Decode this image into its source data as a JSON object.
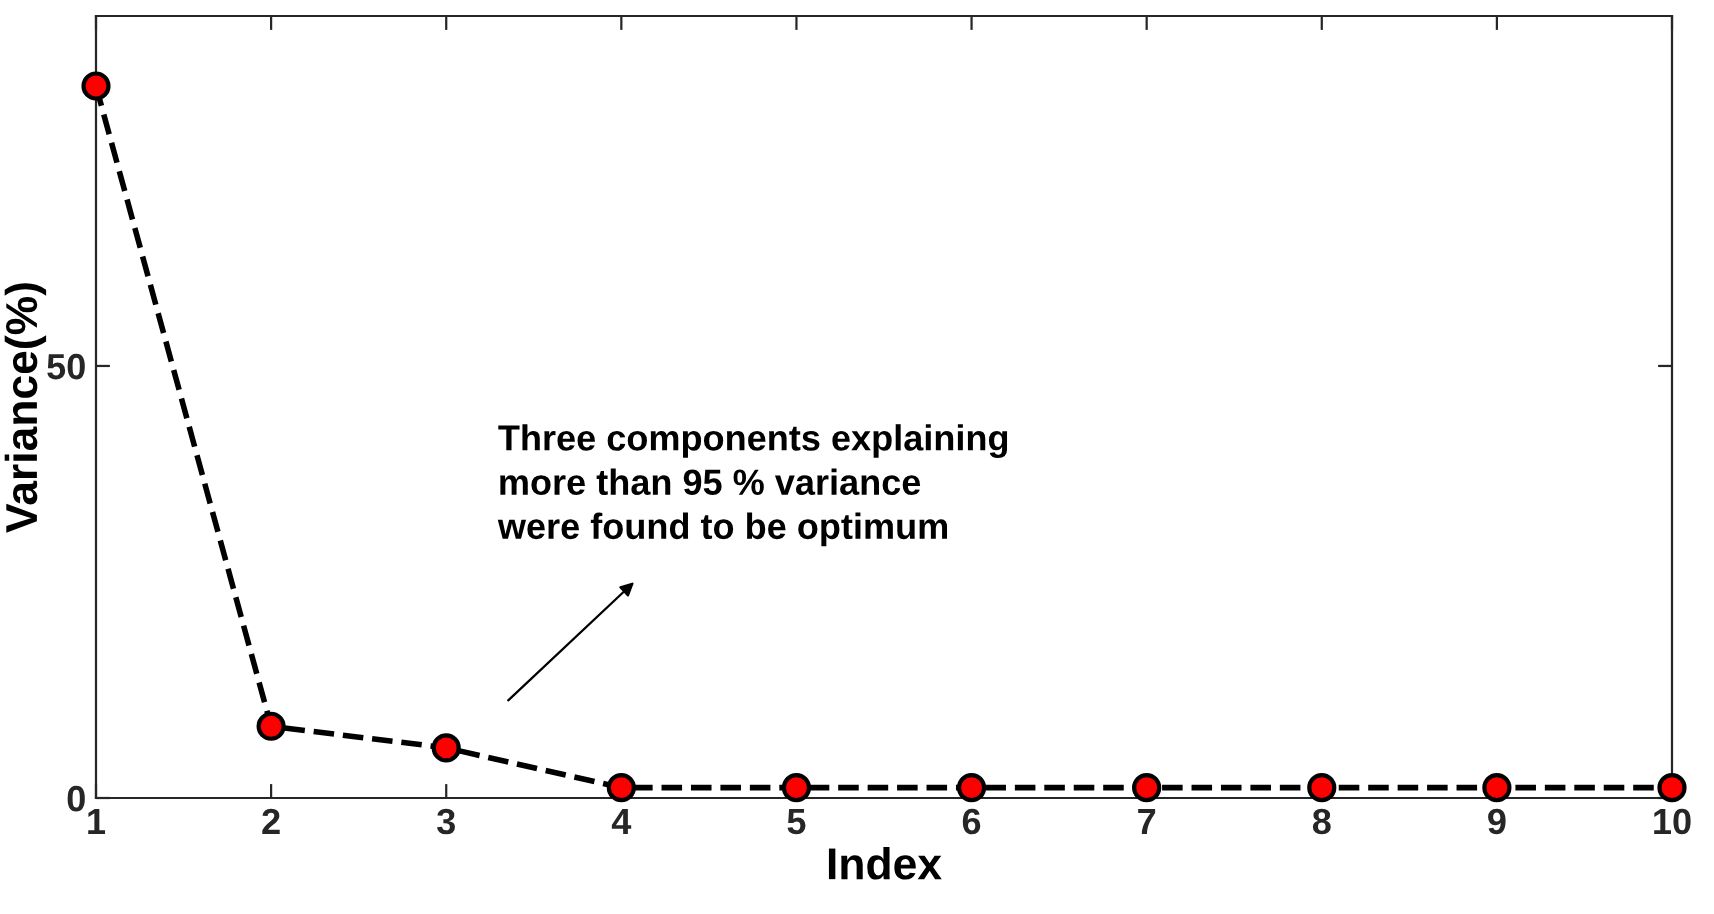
{
  "chart_data": {
    "type": "line",
    "xlabel": "Index",
    "ylabel": "Variance(%)",
    "x": [
      1,
      2,
      3,
      4,
      5,
      6,
      7,
      8,
      9,
      10
    ],
    "series": [
      {
        "color": "#ff0000",
        "values": [
          82.4,
          8.3,
          5.8,
          1.2,
          1.2,
          1.2,
          1.2,
          1.2,
          1.2,
          1.2
        ]
      }
    ],
    "xlim": [
      1,
      10
    ],
    "xticks": [
      1,
      2,
      3,
      4,
      5,
      6,
      7,
      8,
      9,
      10
    ],
    "ylim": [
      0,
      90.5
    ],
    "yticks": [
      0,
      50
    ],
    "marker": "circle",
    "line_style": "dashed",
    "grid": false,
    "legend": false,
    "annotations": [
      "Three components explaining\nmore than 95 % variance\nwere found to be optimum"
    ]
  }
}
